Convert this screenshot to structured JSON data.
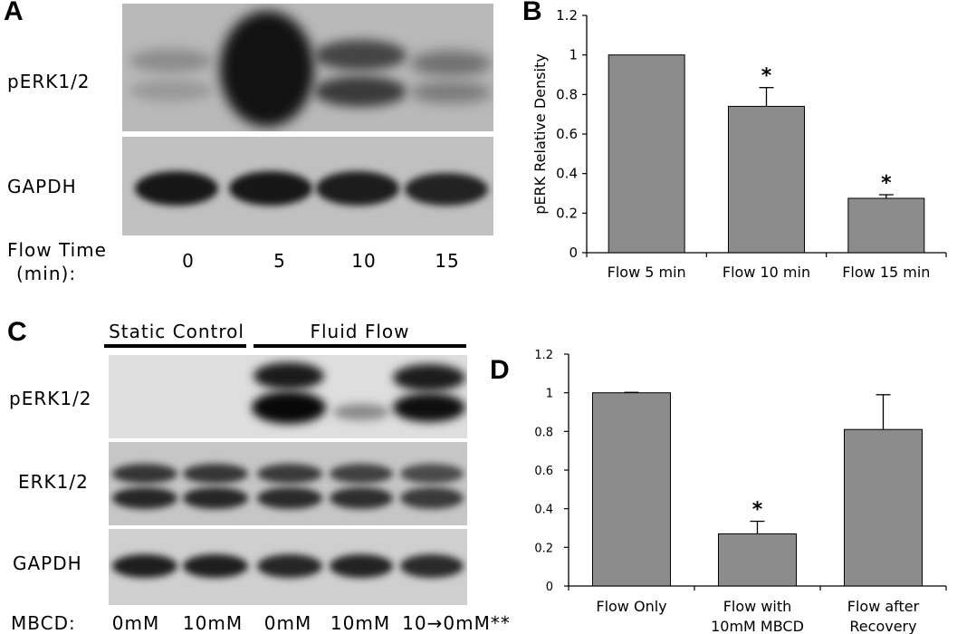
{
  "panels": {
    "a": "A",
    "b": "B",
    "c": "C",
    "d": "D"
  },
  "blot_a": {
    "rows": [
      "pERK1/2",
      "GAPDH"
    ],
    "axis_label_line1": "Flow Time",
    "axis_label_line2": "(min):",
    "lanes": [
      "0",
      "5",
      "10",
      "15"
    ]
  },
  "blot_c": {
    "group_static": "Static Control",
    "group_flow": "Fluid Flow",
    "rows": [
      "pERK1/2",
      "ERK1/2",
      "GAPDH"
    ],
    "treatment_label": "MBCD:",
    "lanes": [
      "0mM",
      "10mM",
      "0mM",
      "10mM",
      "10→0mM**"
    ]
  },
  "chart_data": [
    {
      "type": "bar",
      "title": "",
      "ylabel": "pERK Relative Density",
      "xlabel": "",
      "categories": [
        "Flow 5 min",
        "Flow 10 min",
        "Flow 15 min"
      ],
      "values": [
        1.0,
        0.74,
        0.275
      ],
      "errors": [
        0,
        0.095,
        0.018
      ],
      "significance": [
        "",
        "*",
        "*"
      ],
      "ylim": [
        0,
        1.2
      ],
      "yticks": [
        "0",
        "0.2",
        "0.4",
        "0.6",
        "0.8",
        "1",
        "1.2"
      ],
      "bar_color": "#8c8c8c",
      "grid": false
    },
    {
      "type": "bar",
      "title": "",
      "ylabel": "",
      "xlabel": "",
      "categories": [
        [
          "Flow Only"
        ],
        [
          "Flow with",
          "10mM MBCD"
        ],
        [
          "Flow after",
          "Recovery"
        ]
      ],
      "values": [
        1.0,
        0.27,
        0.81
      ],
      "errors": [
        0.002,
        0.065,
        0.18
      ],
      "significance": [
        "",
        "*",
        ""
      ],
      "ylim": [
        0,
        1.2
      ],
      "yticks": [
        "0",
        "0.2",
        "0.4",
        "0.6",
        "0.8",
        "1",
        "1.2"
      ],
      "bar_color": "#8c8c8c",
      "grid": false
    }
  ]
}
